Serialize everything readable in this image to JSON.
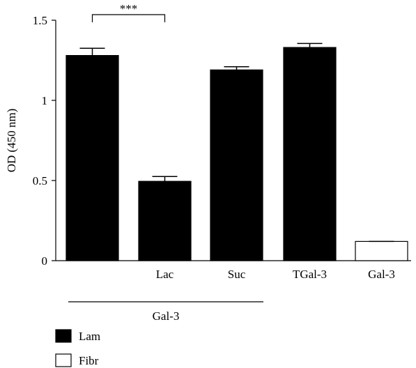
{
  "chart_data": {
    "type": "bar",
    "ylabel": "OD (450 nm)",
    "ylim": [
      0,
      1.5
    ],
    "yticks": [
      {
        "value": 0,
        "label": "0"
      },
      {
        "value": 0.5,
        "label": "0.5"
      },
      {
        "value": 1,
        "label": "1"
      },
      {
        "value": 1.5,
        "label": "1.5"
      }
    ],
    "categories": [
      "",
      "Lac",
      "Suc",
      "TGal-3",
      "Gal-3"
    ],
    "bars": [
      {
        "category": "",
        "value": 1.28,
        "error": 0.045,
        "series": "Lam"
      },
      {
        "category": "Lac",
        "value": 0.495,
        "error": 0.03,
        "series": "Lam"
      },
      {
        "category": "Suc",
        "value": 1.19,
        "error": 0.02,
        "series": "Lam"
      },
      {
        "category": "TGal-3",
        "value": 1.33,
        "error": 0.025,
        "series": "Lam"
      },
      {
        "category": "Gal-3",
        "value": 0.12,
        "error": 0.0,
        "series": "Fibr"
      }
    ],
    "group_label": "Gal-3",
    "significance": {
      "label": "***",
      "from_bar": 0,
      "to_bar": 1
    },
    "legend": {
      "placement": "bottom-left",
      "entries": [
        {
          "label": "Lam",
          "color": "#000000",
          "filled": true
        },
        {
          "label": "Fibr",
          "color": "#ffffff",
          "filled": false
        }
      ]
    }
  }
}
